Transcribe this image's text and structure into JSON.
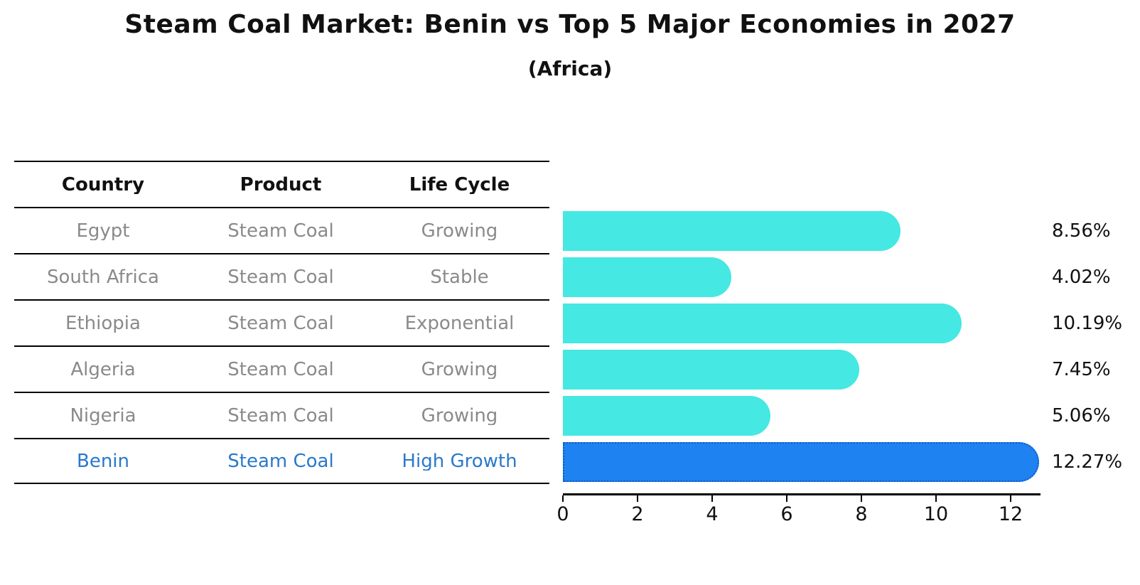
{
  "title": "Steam Coal Market: Benin vs Top 5 Major Economies in 2027",
  "subtitle": "(Africa)",
  "table": {
    "headers": [
      "Country",
      "Product",
      "Life Cycle"
    ],
    "rows": [
      {
        "country": "Egypt",
        "product": "Steam Coal",
        "life_cycle": "Growing",
        "highlight": false
      },
      {
        "country": "South Africa",
        "product": "Steam Coal",
        "life_cycle": "Stable",
        "highlight": false
      },
      {
        "country": "Ethiopia",
        "product": "Steam Coal",
        "life_cycle": "Exponential",
        "highlight": false
      },
      {
        "country": "Algeria",
        "product": "Steam Coal",
        "life_cycle": "Growing",
        "highlight": false
      },
      {
        "country": "Nigeria",
        "product": "Steam Coal",
        "life_cycle": "Growing",
        "highlight": false
      },
      {
        "country": "Benin",
        "product": "Steam Coal",
        "life_cycle": "High Growth",
        "highlight": true
      }
    ]
  },
  "chart_data": {
    "type": "bar",
    "orientation": "horizontal",
    "title": "Steam Coal Market: Benin vs Top 5 Major Economies in 2027",
    "subtitle": "(Africa)",
    "categories": [
      "Egypt",
      "South Africa",
      "Ethiopia",
      "Algeria",
      "Nigeria",
      "Benin"
    ],
    "values": [
      8.56,
      4.02,
      10.19,
      7.45,
      5.06,
      12.27
    ],
    "value_labels": [
      "8.56%",
      "4.02%",
      "10.19%",
      "7.45%",
      "5.06%",
      "12.27%"
    ],
    "highlight_index": 5,
    "xlabel": "",
    "ylabel": "",
    "xlim": [
      0,
      12.8
    ],
    "x_ticks": [
      0,
      2,
      4,
      6,
      8,
      10,
      12
    ],
    "grid": false,
    "legend": false,
    "colors": {
      "bar": "#45e8e2",
      "highlight_bar": "#1e82f0",
      "highlight_border": "#1259c8",
      "highlight_text": "#2979cc",
      "row_text": "#8a8a8a",
      "header_text": "#111111",
      "axis": "#000000"
    }
  }
}
